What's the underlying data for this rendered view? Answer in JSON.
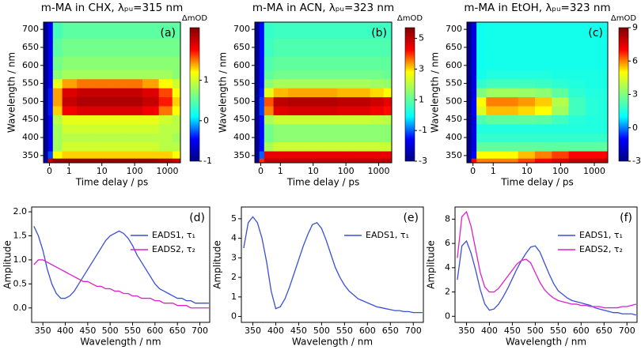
{
  "chart_data": [
    {
      "type": "heatmap",
      "title": "m-MA in CHX, λₚᵤ=315 nm",
      "panel_label": "(a)",
      "xlabel": "Time delay / ps",
      "ylabel": "Wavelength / nm",
      "zlabel": "ΔmOD",
      "xscale": "symlog",
      "x": [
        -0.2,
        0.05,
        0.3,
        1,
        3,
        10,
        30,
        100,
        300,
        1000,
        2000
      ],
      "y": [
        335,
        350,
        375,
        400,
        425,
        450,
        475,
        500,
        525,
        550,
        575,
        600,
        650,
        700
      ],
      "z": [
        [
          -0.8,
          2.0,
          2.2,
          2.2,
          2.2,
          2.2,
          2.2,
          2.2,
          2.2,
          2.1,
          2.0
        ],
        [
          -0.9,
          -0.3,
          1.2,
          1.3,
          1.3,
          1.3,
          1.3,
          1.3,
          1.3,
          1.3,
          1.2
        ],
        [
          -0.9,
          -0.5,
          0.8,
          1.0,
          1.0,
          1.0,
          1.0,
          1.0,
          1.0,
          0.9,
          0.9
        ],
        [
          -0.9,
          -0.5,
          0.8,
          0.9,
          0.9,
          0.9,
          0.9,
          0.9,
          0.9,
          0.9,
          0.8
        ],
        [
          -0.9,
          -0.5,
          0.8,
          1.0,
          1.0,
          1.0,
          1.0,
          1.0,
          1.0,
          0.9,
          0.9
        ],
        [
          -0.9,
          -0.5,
          0.9,
          1.1,
          1.1,
          1.1,
          1.1,
          1.1,
          1.1,
          1.0,
          0.9
        ],
        [
          -0.9,
          -0.4,
          1.3,
          1.8,
          1.9,
          1.9,
          1.9,
          1.9,
          1.8,
          1.5,
          1.2
        ],
        [
          -0.9,
          -0.4,
          1.4,
          2.0,
          2.1,
          2.1,
          2.1,
          2.1,
          2.0,
          1.7,
          1.3
        ],
        [
          -0.9,
          -0.4,
          1.4,
          1.9,
          2.0,
          2.0,
          2.0,
          2.0,
          1.9,
          1.6,
          1.2
        ],
        [
          -0.9,
          -0.5,
          1.1,
          1.4,
          1.5,
          1.5,
          1.5,
          1.5,
          1.4,
          1.2,
          1.0
        ],
        [
          -0.9,
          -0.5,
          0.7,
          0.8,
          0.8,
          0.8,
          0.8,
          0.8,
          0.8,
          0.8,
          0.7
        ],
        [
          -0.9,
          -0.5,
          0.6,
          0.7,
          0.7,
          0.7,
          0.7,
          0.7,
          0.7,
          0.7,
          0.7
        ],
        [
          -0.9,
          -0.5,
          0.5,
          0.6,
          0.6,
          0.6,
          0.6,
          0.6,
          0.6,
          0.6,
          0.6
        ],
        [
          -0.9,
          -0.5,
          0.4,
          0.5,
          0.5,
          0.5,
          0.5,
          0.5,
          0.5,
          0.5,
          0.5
        ]
      ],
      "xlim": [
        -0.3,
        2500
      ],
      "xticks": [
        0,
        1,
        10,
        100,
        1000
      ],
      "ylim": [
        330,
        720
      ],
      "yticks": [
        350,
        400,
        450,
        500,
        550,
        600,
        650,
        700
      ],
      "zlim": [
        -1,
        2.3
      ],
      "zticks": [
        -1,
        0,
        1
      ],
      "colormap": [
        "#00007f",
        "#0000ff",
        "#00ffff",
        "#7fff7f",
        "#ffff00",
        "#ff0000",
        "#7f0000"
      ]
    },
    {
      "type": "heatmap",
      "title": "m-MA in ACN, λₚᵤ=323 nm",
      "panel_label": "(b)",
      "xlabel": "Time delay / ps",
      "ylabel": "Wavelength / nm",
      "zlabel": "ΔmOD",
      "xscale": "symlog",
      "x": [
        -0.2,
        0.05,
        0.3,
        1,
        3,
        10,
        30,
        100,
        300,
        1000,
        2000
      ],
      "y": [
        335,
        350,
        375,
        400,
        425,
        450,
        475,
        500,
        525,
        550,
        575,
        600,
        650,
        700
      ],
      "z": [
        [
          -2.8,
          4,
          5,
          5,
          5,
          5,
          5,
          5,
          5,
          5,
          5
        ],
        [
          -2.8,
          -1,
          4.5,
          4.5,
          4.5,
          4.5,
          4.5,
          4.5,
          4.5,
          4.5,
          4.5
        ],
        [
          -2.8,
          -1.5,
          1.8,
          2.2,
          2.2,
          2.2,
          2.2,
          2.2,
          2.2,
          2.2,
          2.2
        ],
        [
          -2.8,
          -1.5,
          1.2,
          1.5,
          1.5,
          1.5,
          1.5,
          1.5,
          1.5,
          1.5,
          1.5
        ],
        [
          -2.8,
          -1.5,
          1.2,
          1.5,
          1.5,
          1.5,
          1.5,
          1.5,
          1.5,
          1.5,
          1.5
        ],
        [
          -2.8,
          -1.5,
          1.8,
          2.2,
          2.2,
          2.2,
          2.2,
          2.2,
          2.2,
          2.1,
          2.0
        ],
        [
          -2.8,
          -1.2,
          3.5,
          4.6,
          4.7,
          4.7,
          4.7,
          4.6,
          4.6,
          4.4,
          4.2
        ],
        [
          -2.8,
          -1.2,
          3.8,
          5.0,
          5.1,
          5.1,
          5.1,
          5.0,
          5.0,
          4.8,
          4.5
        ],
        [
          -2.8,
          -1.4,
          2.5,
          3.2,
          3.3,
          3.3,
          3.3,
          3.2,
          3.2,
          3.0,
          2.8
        ],
        [
          -2.8,
          -1.5,
          1.5,
          1.8,
          1.8,
          1.8,
          1.8,
          1.8,
          1.8,
          1.7,
          1.6
        ],
        [
          -2.8,
          -1.5,
          1.0,
          1.2,
          1.2,
          1.2,
          1.2,
          1.2,
          1.2,
          1.2,
          1.1
        ],
        [
          -2.8,
          -1.5,
          0.8,
          1.0,
          1.0,
          1.0,
          1.0,
          1.0,
          1.0,
          1.0,
          1.0
        ],
        [
          -2.8,
          -1.5,
          0.6,
          0.8,
          0.8,
          0.8,
          0.8,
          0.8,
          0.8,
          0.8,
          0.8
        ],
        [
          -2.8,
          -1.5,
          0.5,
          0.6,
          0.6,
          0.6,
          0.6,
          0.6,
          0.6,
          0.6,
          0.6
        ]
      ],
      "xlim": [
        -0.3,
        2500
      ],
      "xticks": [
        0,
        1,
        10,
        100,
        1000
      ],
      "ylim": [
        330,
        720
      ],
      "yticks": [
        350,
        400,
        450,
        500,
        550,
        600,
        650,
        700
      ],
      "zlim": [
        -3,
        5.7
      ],
      "zticks": [
        -3,
        -1,
        1,
        3,
        5
      ],
      "colormap": [
        "#00007f",
        "#0000ff",
        "#00ffff",
        "#7fff7f",
        "#ffff00",
        "#ff0000",
        "#7f0000"
      ]
    },
    {
      "type": "heatmap",
      "title": "m-MA in EtOH, λₚᵤ=323 nm",
      "panel_label": "(c)",
      "xlabel": "Time delay / ps",
      "ylabel": "Wavelength / nm",
      "zlabel": "ΔmOD",
      "xscale": "symlog",
      "x": [
        -0.2,
        0.05,
        0.3,
        1,
        3,
        10,
        30,
        100,
        300,
        1000,
        2000
      ],
      "y": [
        335,
        350,
        375,
        400,
        425,
        450,
        475,
        500,
        525,
        550,
        575,
        600,
        650,
        700
      ],
      "z": [
        [
          -2.8,
          7,
          6,
          6,
          6,
          6.5,
          7,
          7.5,
          8,
          8,
          8
        ],
        [
          -2.8,
          -1,
          5,
          5,
          5,
          5.5,
          6,
          6.5,
          7,
          7,
          7
        ],
        [
          -2.8,
          -1.5,
          2.5,
          2.5,
          2.5,
          2.5,
          2.5,
          2.5,
          2.5,
          2.5,
          2.5
        ],
        [
          -2.8,
          -1.5,
          1.8,
          1.8,
          1.8,
          1.8,
          1.8,
          1.8,
          1.8,
          1.8,
          1.8
        ],
        [
          -2.8,
          -1.5,
          1.5,
          1.5,
          1.5,
          1.5,
          1.5,
          1.5,
          1.5,
          1.5,
          1.5
        ],
        [
          -2.8,
          -1.5,
          2.2,
          2.5,
          2.5,
          2.5,
          2.4,
          2.0,
          1.6,
          1.5,
          1.5
        ],
        [
          -2.8,
          -1.2,
          4.5,
          5.5,
          5.5,
          5.3,
          5.0,
          3.5,
          2.0,
          1.6,
          1.5
        ],
        [
          -2.8,
          -1.2,
          5.0,
          6.0,
          6.0,
          5.8,
          5.4,
          3.8,
          2.0,
          1.6,
          1.5
        ],
        [
          -2.8,
          -1.4,
          3.0,
          3.5,
          3.5,
          3.4,
          3.2,
          2.5,
          1.7,
          1.5,
          1.5
        ],
        [
          -2.8,
          -1.5,
          1.8,
          2.0,
          2.0,
          2.0,
          1.9,
          1.7,
          1.5,
          1.4,
          1.4
        ],
        [
          -2.8,
          -1.5,
          1.3,
          1.5,
          1.5,
          1.5,
          1.5,
          1.4,
          1.4,
          1.4,
          1.4
        ],
        [
          -2.8,
          -1.5,
          1.2,
          1.3,
          1.3,
          1.3,
          1.3,
          1.3,
          1.3,
          1.3,
          1.3
        ],
        [
          -2.8,
          -1.5,
          1.2,
          1.3,
          1.3,
          1.3,
          1.3,
          1.3,
          1.3,
          1.3,
          1.3
        ],
        [
          -2.8,
          -1.5,
          1.2,
          1.3,
          1.3,
          1.3,
          1.3,
          1.3,
          1.3,
          1.3,
          1.3
        ]
      ],
      "xlim": [
        -0.3,
        2500
      ],
      "xticks": [
        0,
        1,
        10,
        100,
        1000
      ],
      "ylim": [
        330,
        720
      ],
      "yticks": [
        350,
        400,
        450,
        500,
        550,
        600,
        650,
        700
      ],
      "zlim": [
        -3,
        9
      ],
      "zticks": [
        -3,
        0,
        3,
        6,
        9
      ],
      "colormap": [
        "#00007f",
        "#0000ff",
        "#00ffff",
        "#7fff7f",
        "#ffff00",
        "#ff0000",
        "#7f0000"
      ]
    },
    {
      "type": "line",
      "panel_label": "(d)",
      "xlabel": "Wavelength / nm",
      "ylabel": "Amplitude",
      "x": [
        330,
        340,
        350,
        360,
        370,
        380,
        390,
        400,
        410,
        420,
        430,
        440,
        450,
        460,
        470,
        480,
        490,
        500,
        510,
        520,
        530,
        540,
        550,
        560,
        570,
        580,
        590,
        600,
        610,
        620,
        630,
        640,
        650,
        660,
        670,
        680,
        690,
        700,
        710,
        720
      ],
      "series": [
        {
          "name": "EADS1, τ₁",
          "color": "#3a4fd8",
          "values": [
            1.7,
            1.5,
            1.2,
            0.8,
            0.5,
            0.3,
            0.2,
            0.2,
            0.25,
            0.35,
            0.5,
            0.65,
            0.8,
            0.95,
            1.1,
            1.25,
            1.4,
            1.5,
            1.55,
            1.6,
            1.55,
            1.45,
            1.3,
            1.1,
            0.95,
            0.8,
            0.65,
            0.5,
            0.4,
            0.35,
            0.3,
            0.25,
            0.2,
            0.2,
            0.15,
            0.15,
            0.1,
            0.1,
            0.1,
            0.1
          ]
        },
        {
          "name": "EADS2, τ₂",
          "color": "#e020c8",
          "values": [
            0.9,
            1.0,
            1.0,
            0.95,
            0.9,
            0.85,
            0.8,
            0.75,
            0.7,
            0.65,
            0.6,
            0.55,
            0.55,
            0.5,
            0.45,
            0.45,
            0.4,
            0.4,
            0.35,
            0.35,
            0.3,
            0.3,
            0.25,
            0.25,
            0.2,
            0.2,
            0.2,
            0.15,
            0.15,
            0.1,
            0.1,
            0.1,
            0.05,
            0.05,
            0.05,
            0.0,
            0.0,
            0.0,
            0.0,
            0.0
          ]
        }
      ],
      "xlim": [
        325,
        722
      ],
      "xticks": [
        350,
        400,
        450,
        500,
        550,
        600,
        650,
        700
      ],
      "ylim": [
        -0.3,
        2.1
      ],
      "yticks": [
        {
          "value": 0,
          "label": "0.0"
        },
        {
          "value": 0.5,
          "label": "0.5"
        },
        {
          "value": 1,
          "label": "1.0"
        },
        {
          "value": 1.5,
          "label": "1.5"
        },
        {
          "value": 2,
          "label": "2.0"
        }
      ]
    },
    {
      "type": "line",
      "panel_label": "(e)",
      "xlabel": "Wavelength / nm",
      "ylabel": "Amplitude",
      "x": [
        330,
        340,
        350,
        360,
        370,
        380,
        390,
        400,
        410,
        420,
        430,
        440,
        450,
        460,
        470,
        480,
        490,
        500,
        510,
        520,
        530,
        540,
        550,
        560,
        570,
        580,
        590,
        600,
        610,
        620,
        630,
        640,
        650,
        660,
        670,
        680,
        690,
        700,
        710,
        720
      ],
      "series": [
        {
          "name": "EADS1, τ₁",
          "color": "#3a4fd8",
          "values": [
            3.5,
            4.8,
            5.1,
            4.8,
            4.0,
            2.8,
            1.3,
            0.4,
            0.5,
            0.9,
            1.5,
            2.2,
            2.9,
            3.6,
            4.2,
            4.7,
            4.8,
            4.5,
            3.9,
            3.2,
            2.5,
            2.0,
            1.6,
            1.3,
            1.1,
            0.9,
            0.8,
            0.7,
            0.6,
            0.5,
            0.45,
            0.4,
            0.35,
            0.3,
            0.3,
            0.25,
            0.25,
            0.2,
            0.2,
            0.2
          ]
        }
      ],
      "xlim": [
        325,
        722
      ],
      "xticks": [
        350,
        400,
        450,
        500,
        550,
        600,
        650,
        700
      ],
      "ylim": [
        -0.3,
        5.6
      ],
      "yticks": [
        0,
        1,
        2,
        3,
        4,
        5
      ]
    },
    {
      "type": "line",
      "panel_label": "(f)",
      "xlabel": "Wavelength / nm",
      "ylabel": "Amplitude",
      "x": [
        330,
        340,
        350,
        360,
        370,
        380,
        390,
        400,
        410,
        420,
        430,
        440,
        450,
        460,
        470,
        480,
        490,
        500,
        510,
        520,
        530,
        540,
        550,
        560,
        570,
        580,
        590,
        600,
        610,
        620,
        630,
        640,
        650,
        660,
        670,
        680,
        690,
        700,
        710,
        720
      ],
      "series": [
        {
          "name": "EADS1, τ₁",
          "color": "#3a4fd8",
          "values": [
            3.0,
            5.8,
            6.2,
            5.2,
            3.8,
            2.2,
            1.0,
            0.5,
            0.6,
            1.0,
            1.6,
            2.3,
            3.1,
            3.9,
            4.6,
            5.2,
            5.7,
            5.8,
            5.3,
            4.4,
            3.5,
            2.7,
            2.1,
            1.8,
            1.5,
            1.3,
            1.2,
            1.1,
            1.0,
            0.9,
            0.7,
            0.6,
            0.5,
            0.4,
            0.3,
            0.3,
            0.2,
            0.2,
            0.2,
            0.1
          ]
        },
        {
          "name": "EADS2, τ₂",
          "color": "#e020c8",
          "values": [
            4.8,
            8.2,
            8.6,
            7.4,
            5.5,
            3.6,
            2.4,
            2.0,
            2.0,
            2.3,
            2.8,
            3.3,
            3.8,
            4.3,
            4.6,
            4.7,
            4.4,
            3.6,
            2.8,
            2.2,
            1.8,
            1.5,
            1.3,
            1.2,
            1.1,
            1.0,
            1.0,
            0.9,
            0.9,
            0.8,
            0.8,
            0.8,
            0.7,
            0.7,
            0.7,
            0.7,
            0.8,
            0.8,
            0.9,
            1.0
          ]
        }
      ],
      "xlim": [
        325,
        722
      ],
      "xticks": [
        350,
        400,
        450,
        500,
        550,
        600,
        650,
        700
      ],
      "ylim": [
        -0.5,
        9
      ],
      "yticks": [
        0,
        2,
        4,
        6,
        8
      ]
    }
  ]
}
